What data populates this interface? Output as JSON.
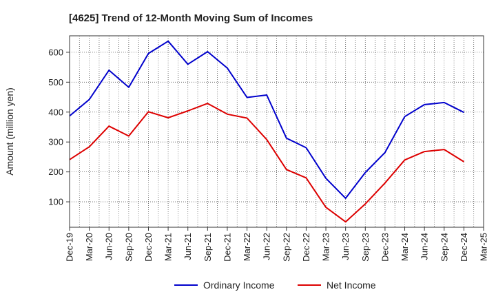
{
  "chart_data": {
    "type": "line",
    "title": "[4625]  Trend of 12-Month Moving Sum of Incomes",
    "xlabel": "",
    "ylabel": "Amount (million yen)",
    "ylim": [
      15,
      655
    ],
    "yticks": [
      100,
      200,
      300,
      400,
      500,
      600
    ],
    "categories": [
      "Dec-19",
      "Mar-20",
      "Jun-20",
      "Sep-20",
      "Dec-20",
      "Mar-21",
      "Jun-21",
      "Sep-21",
      "Dec-21",
      "Mar-22",
      "Jun-22",
      "Sep-22",
      "Dec-22",
      "Mar-23",
      "Jun-23",
      "Sep-23",
      "Dec-23",
      "Mar-24",
      "Jun-24",
      "Sep-24",
      "Dec-24",
      "Mar-25"
    ],
    "grid": true,
    "legend_position": "bottom",
    "series": [
      {
        "name": "Ordinary Income",
        "color": "#0000cc",
        "values": [
          387,
          442,
          540,
          483,
          596,
          637,
          560,
          602,
          547,
          449,
          457,
          313,
          281,
          179,
          112,
          198,
          265,
          385,
          425,
          432,
          399,
          null
        ]
      },
      {
        "name": "Net Income",
        "color": "#dd0000",
        "values": [
          241,
          284,
          353,
          320,
          401,
          381,
          404,
          429,
          393,
          380,
          308,
          208,
          180,
          82,
          33,
          93,
          163,
          240,
          268,
          275,
          234,
          null
        ]
      }
    ]
  }
}
